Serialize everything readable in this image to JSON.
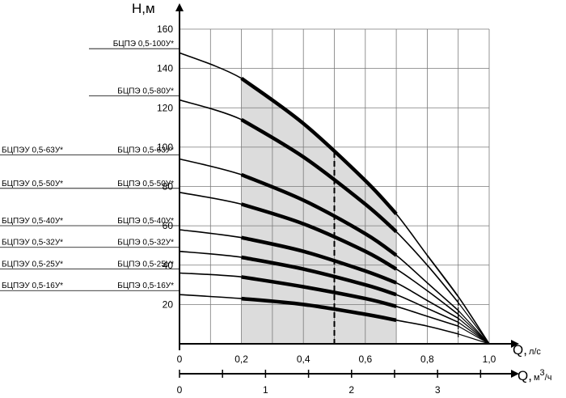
{
  "chart_data": {
    "type": "line",
    "ylabel": "Н,м",
    "xlabel": "Q, л/с",
    "xlabel2": "Q, м3/ч",
    "xlabel_main": "Q,",
    "xlabel_unit": "л/с",
    "xlabel2_main": "Q,",
    "xlabel2_unit": "м",
    "xlabel2_sup": "3",
    "xlabel2_unit_tail": "/ч",
    "xlim": [
      0,
      1.0
    ],
    "ylim": [
      0,
      160
    ],
    "grid": true,
    "y_ticks": [
      "20",
      "40",
      "60",
      "80",
      "100",
      "120",
      "140",
      "160"
    ],
    "x_ticks": [
      "0",
      "0,2",
      "0,4",
      "0,6",
      "0,8",
      "1,0"
    ],
    "x2_ticks": [
      "0",
      "1",
      "2",
      "3"
    ],
    "working_range_q": [
      0.2,
      0.7
    ],
    "nominal_q": 0.5,
    "series": [
      {
        "label": "БЦПЭ 0,5-100У*",
        "label_left": "",
        "values": [
          [
            0,
            148
          ],
          [
            0.2,
            135
          ],
          [
            0.4,
            112
          ],
          [
            0.6,
            83
          ],
          [
            0.7,
            66
          ],
          [
            0.8,
            45
          ],
          [
            0.9,
            24
          ],
          [
            1.0,
            0
          ]
        ]
      },
      {
        "label": "БЦПЭ 0,5-80У*",
        "label_left": "",
        "values": [
          [
            0,
            124
          ],
          [
            0.2,
            114
          ],
          [
            0.4,
            95
          ],
          [
            0.6,
            71
          ],
          [
            0.7,
            57
          ],
          [
            0.8,
            40
          ],
          [
            0.9,
            21
          ],
          [
            1.0,
            0
          ]
        ]
      },
      {
        "label": "БЦПЭ 0,5-63У*",
        "label_left": "БЦПЭУ 0,5-63У*",
        "values": [
          [
            0,
            94
          ],
          [
            0.2,
            86
          ],
          [
            0.4,
            73
          ],
          [
            0.6,
            56
          ],
          [
            0.7,
            45
          ],
          [
            0.8,
            31
          ],
          [
            0.9,
            17
          ],
          [
            1.0,
            0
          ]
        ]
      },
      {
        "label": "БЦПЭ 0,5-50У*",
        "label_left": "БЦПЭУ 0,5-50У*",
        "values": [
          [
            0,
            77
          ],
          [
            0.2,
            71
          ],
          [
            0.4,
            61
          ],
          [
            0.6,
            47
          ],
          [
            0.7,
            38
          ],
          [
            0.8,
            27
          ],
          [
            0.9,
            15
          ],
          [
            1.0,
            0
          ]
        ]
      },
      {
        "label": "БЦПЭ 0,5-40У*",
        "label_left": "БЦПЭУ 0,5-40У*",
        "values": [
          [
            0,
            58
          ],
          [
            0.2,
            54
          ],
          [
            0.4,
            47
          ],
          [
            0.6,
            37
          ],
          [
            0.7,
            31
          ],
          [
            0.8,
            22
          ],
          [
            0.9,
            13
          ],
          [
            1.0,
            0
          ]
        ]
      },
      {
        "label": "БЦПЭ 0,5-32У*",
        "label_left": "БЦПЭУ 0,5-32У*",
        "values": [
          [
            0,
            47
          ],
          [
            0.2,
            44
          ],
          [
            0.4,
            38
          ],
          [
            0.6,
            30
          ],
          [
            0.7,
            25
          ],
          [
            0.8,
            18
          ],
          [
            0.9,
            11
          ],
          [
            1.0,
            0
          ]
        ]
      },
      {
        "label": "БЦПЭ 0,5-25У*",
        "label_left": "БЦПЭУ 0,5-25У*",
        "values": [
          [
            0,
            36
          ],
          [
            0.2,
            34
          ],
          [
            0.4,
            29
          ],
          [
            0.6,
            23
          ],
          [
            0.7,
            19
          ],
          [
            0.8,
            14
          ],
          [
            0.9,
            9
          ],
          [
            1.0,
            0
          ]
        ]
      },
      {
        "label": "БЦПЭ 0,5-16У*",
        "label_left": "БЦПЭУ 0,5-16У*",
        "values": [
          [
            0,
            25
          ],
          [
            0.2,
            23
          ],
          [
            0.4,
            20
          ],
          [
            0.6,
            15
          ],
          [
            0.7,
            12
          ],
          [
            0.8,
            9
          ],
          [
            0.9,
            5
          ],
          [
            1.0,
            0
          ]
        ]
      }
    ]
  }
}
